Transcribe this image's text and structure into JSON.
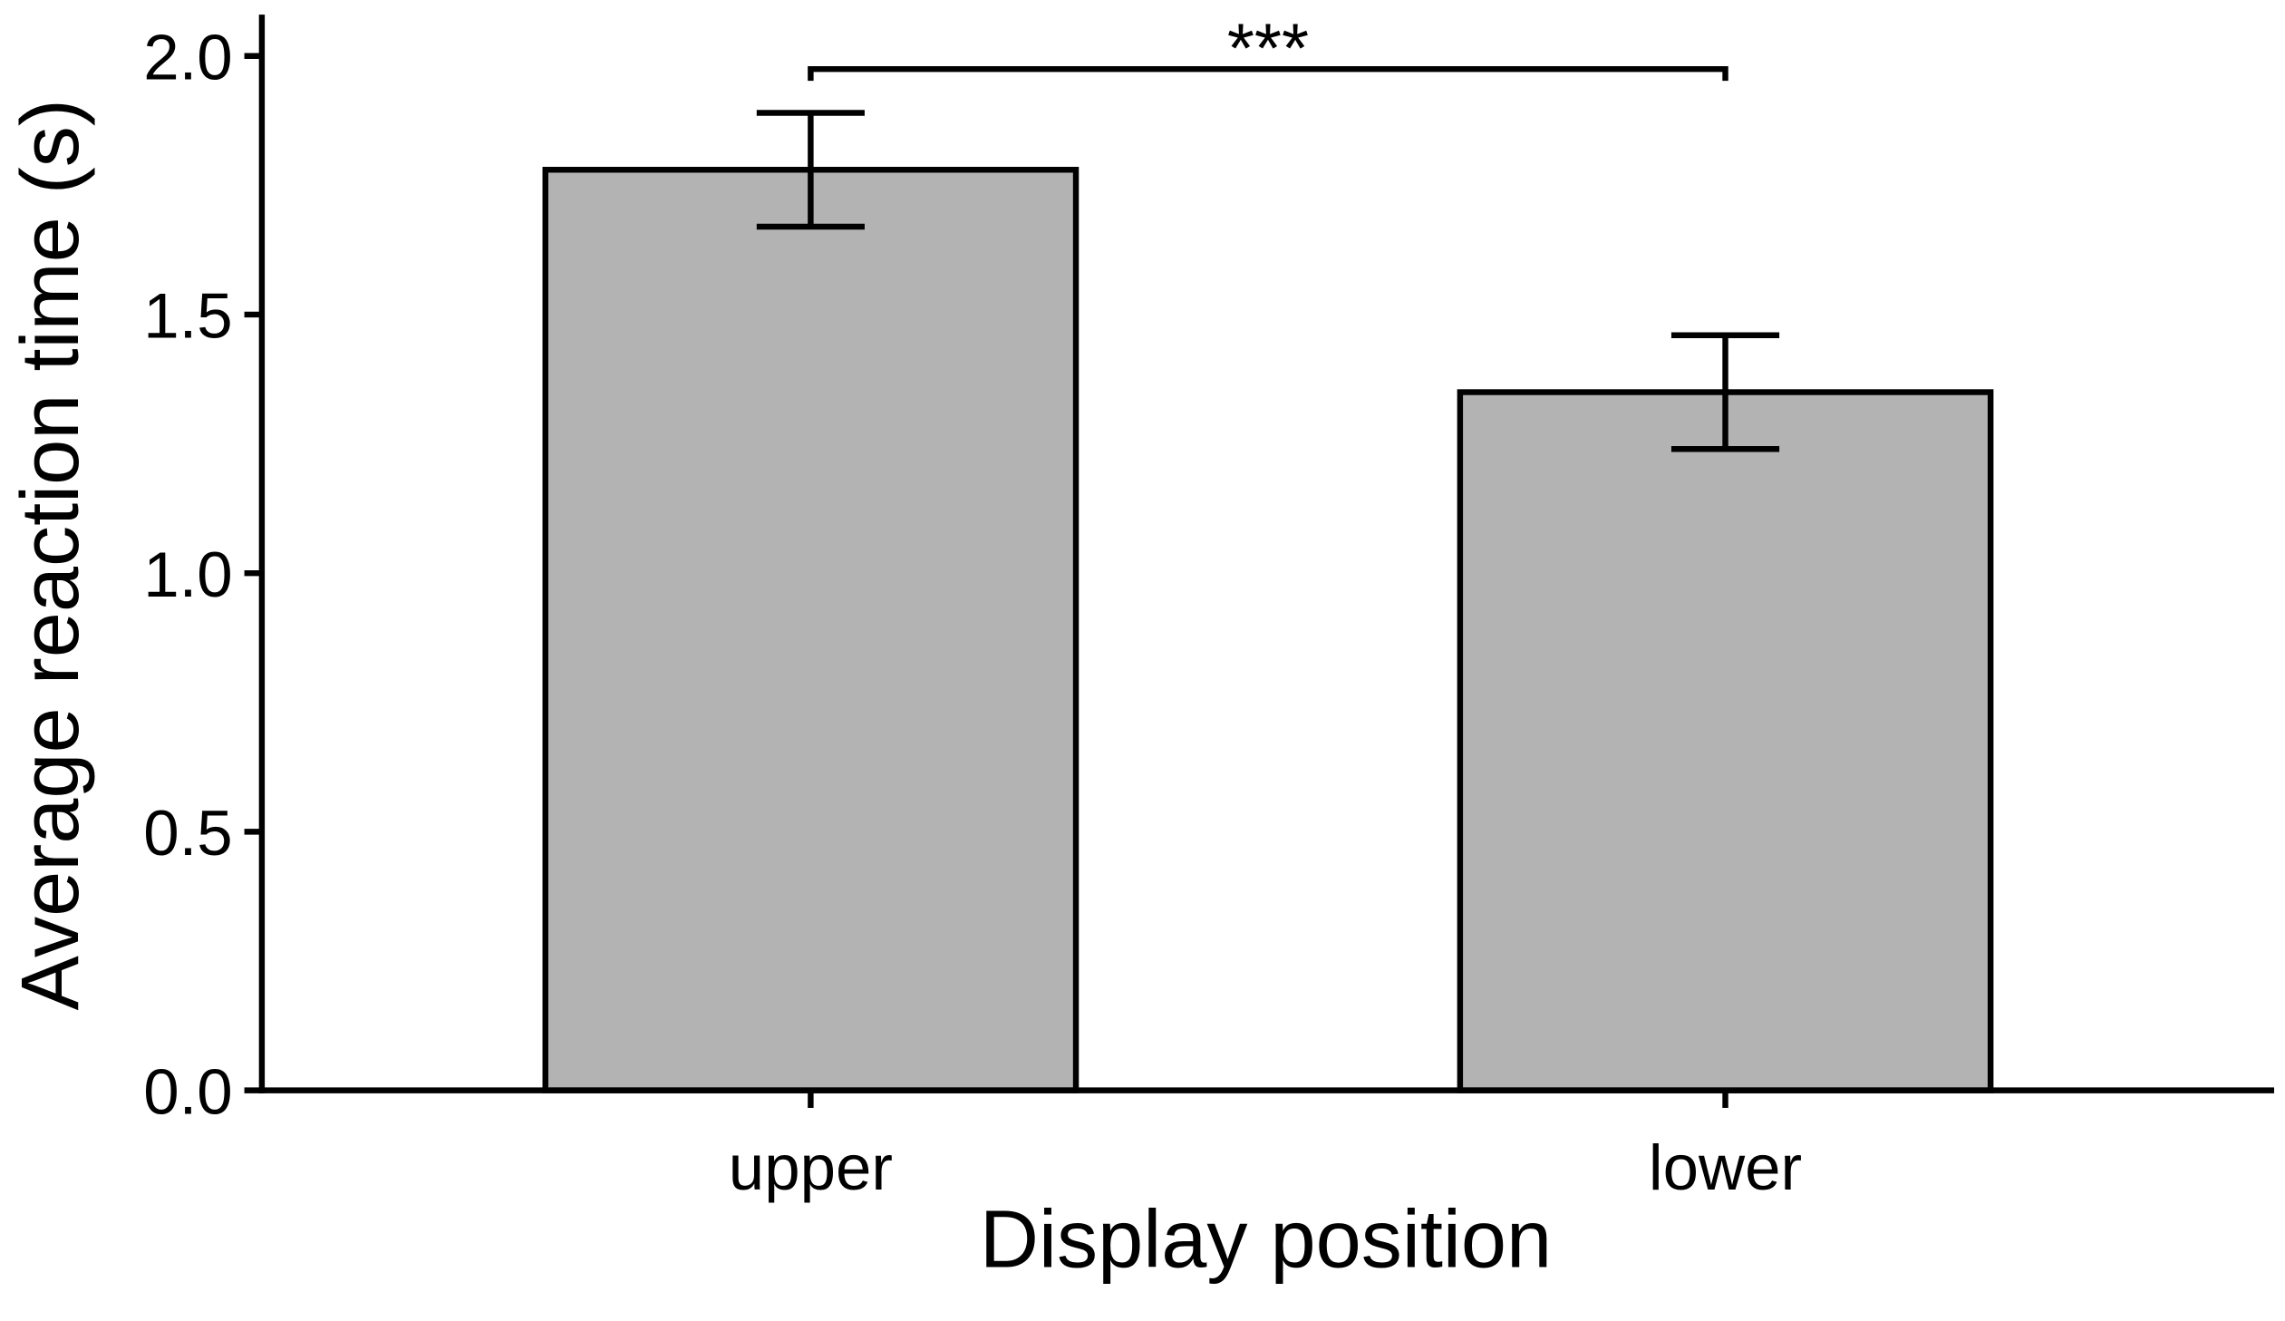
{
  "chart_data": {
    "type": "bar",
    "x_label": "Display position",
    "y_label": "Average reaction time (s)",
    "categories": [
      "upper",
      "lower"
    ],
    "values": [
      1.78,
      1.35
    ],
    "errors": [
      0.11,
      0.11
    ],
    "color": "#b3b3b3",
    "significance": "***",
    "ylim": [
      0,
      2.08
    ],
    "yticks": [
      {
        "value": 0,
        "label": "0.0"
      },
      {
        "value": 0.5,
        "label": "0.5"
      },
      {
        "value": 1,
        "label": "1.0"
      },
      {
        "value": 1.5,
        "label": "1.5"
      },
      {
        "value": 2,
        "label": "2.0"
      }
    ],
    "grid": false
  }
}
